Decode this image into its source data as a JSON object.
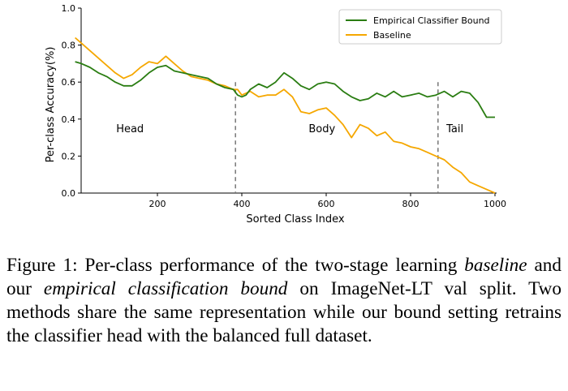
{
  "chart_data": {
    "type": "line",
    "xlabel": "Sorted Class Index",
    "ylabel": "Per-class Accuracy(%)",
    "xlim": [
      0,
      1000
    ],
    "ylim": [
      0.0,
      1.0
    ],
    "x_ticks": [
      200,
      400,
      600,
      800,
      1000
    ],
    "y_ticks": [
      0.0,
      0.2,
      0.4,
      0.6,
      0.8,
      1.0
    ],
    "x_tick_labels": [
      "200",
      "400",
      "600",
      "800",
      "1000"
    ],
    "y_tick_labels": [
      "0.0",
      "0.2",
      "0.4",
      "0.6",
      "0.8",
      "1.0"
    ],
    "grid": false,
    "legend_position": "top-right",
    "dividers": [
      385,
      865
    ],
    "regions": [
      {
        "label": "Head",
        "x": 135,
        "y": 0.35
      },
      {
        "label": "Body",
        "x": 590,
        "y": 0.35
      },
      {
        "label": "Tail",
        "x": 905,
        "y": 0.35
      }
    ],
    "series": [
      {
        "name": "Empirical Classifier Bound",
        "color": "#2a7d12",
        "x": [
          5,
          20,
          40,
          60,
          80,
          100,
          120,
          140,
          160,
          180,
          200,
          220,
          240,
          260,
          280,
          300,
          320,
          340,
          360,
          380,
          390,
          400,
          410,
          420,
          440,
          460,
          480,
          500,
          520,
          540,
          560,
          580,
          600,
          620,
          640,
          660,
          680,
          700,
          720,
          740,
          760,
          780,
          800,
          820,
          840,
          860,
          880,
          900,
          920,
          940,
          960,
          980,
          1000
        ],
        "y": [
          0.71,
          0.7,
          0.68,
          0.65,
          0.63,
          0.6,
          0.58,
          0.58,
          0.61,
          0.65,
          0.68,
          0.69,
          0.66,
          0.65,
          0.64,
          0.63,
          0.62,
          0.59,
          0.57,
          0.56,
          0.53,
          0.52,
          0.53,
          0.56,
          0.59,
          0.57,
          0.6,
          0.65,
          0.62,
          0.58,
          0.56,
          0.59,
          0.6,
          0.59,
          0.55,
          0.52,
          0.5,
          0.51,
          0.54,
          0.52,
          0.55,
          0.52,
          0.53,
          0.54,
          0.52,
          0.53,
          0.55,
          0.52,
          0.55,
          0.54,
          0.49,
          0.41,
          0.41
        ]
      },
      {
        "name": "Baseline",
        "color": "#f5a700",
        "x": [
          5,
          20,
          40,
          60,
          80,
          100,
          120,
          140,
          160,
          180,
          200,
          220,
          240,
          260,
          280,
          300,
          320,
          340,
          360,
          380,
          390,
          400,
          420,
          440,
          460,
          480,
          500,
          520,
          540,
          560,
          580,
          600,
          620,
          640,
          660,
          680,
          700,
          720,
          740,
          760,
          780,
          800,
          820,
          840,
          860,
          880,
          900,
          920,
          940,
          960,
          980,
          1000
        ],
        "y": [
          0.84,
          0.81,
          0.77,
          0.73,
          0.69,
          0.65,
          0.62,
          0.64,
          0.68,
          0.71,
          0.7,
          0.74,
          0.7,
          0.66,
          0.63,
          0.62,
          0.61,
          0.59,
          0.58,
          0.56,
          0.56,
          0.53,
          0.55,
          0.52,
          0.53,
          0.53,
          0.56,
          0.52,
          0.44,
          0.43,
          0.45,
          0.46,
          0.42,
          0.37,
          0.3,
          0.37,
          0.35,
          0.31,
          0.33,
          0.28,
          0.27,
          0.25,
          0.24,
          0.22,
          0.2,
          0.18,
          0.14,
          0.11,
          0.06,
          0.04,
          0.02,
          0.0
        ]
      }
    ]
  },
  "caption": {
    "prefix": "Figure 1: Per-class performance of the two-stage learning ",
    "baseline": "baseline",
    "middle": " and our ",
    "bound": "empirical classification bound",
    "suffix": " on ImageNet-LT val split. Two methods share the same representation while our bound setting retrains the classifier head with the balanced full dataset."
  }
}
